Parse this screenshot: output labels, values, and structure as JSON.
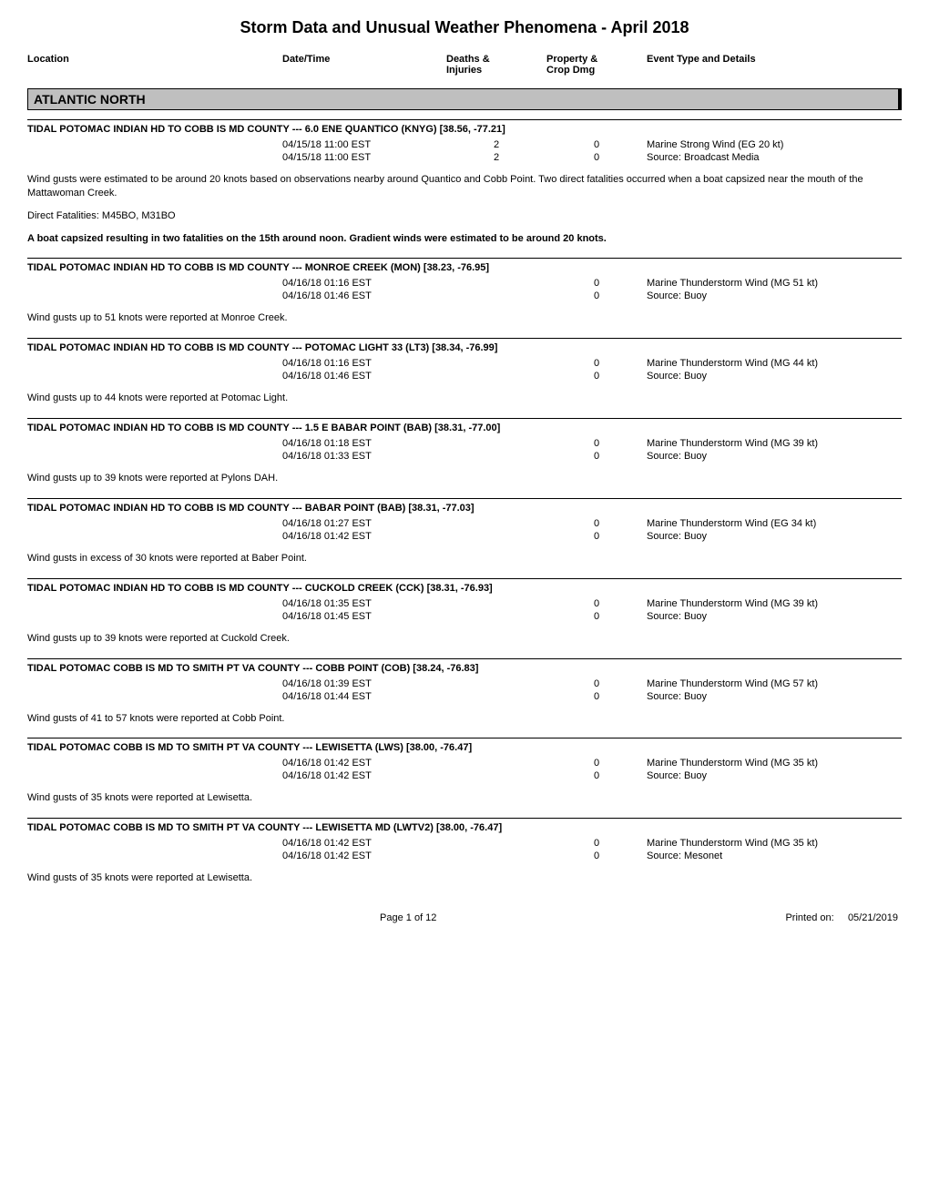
{
  "title": "Storm Data and Unusual Weather Phenomena - April 2018",
  "columns": {
    "c1": "Location",
    "c2": "Date/Time",
    "c3a": "Deaths &",
    "c3b": "Injuries",
    "c4a": "Property &",
    "c4b": "Crop Dmg",
    "c5": "Event Type and Details"
  },
  "region": "ATLANTIC NORTH",
  "events": [
    {
      "header": "TIDAL POTOMAC INDIAN HD TO COBB IS MD COUNTY --- 6.0 ENE QUANTICO (KNYG) [38.56, -77.21]",
      "rows": [
        {
          "date": "04/15/18 11:00 EST",
          "deaths": "2",
          "prop": "0",
          "type": "Marine Strong Wind (EG 20 kt)"
        },
        {
          "date": "04/15/18 11:00 EST",
          "deaths": "2",
          "prop": "0",
          "type": "Source: Broadcast Media"
        }
      ],
      "descs": [
        {
          "text": "Wind gusts were estimated to be around 20 knots based on observations nearby around Quantico and Cobb Point. Two direct fatalities occurred when a boat capsized near the mouth of the Mattawoman Creek.",
          "bold": false
        },
        {
          "text": "Direct Fatalities: M45BO, M31BO",
          "bold": false
        },
        {
          "text": "A boat capsized resulting in two fatalities on the 15th around noon. Gradient winds were estimated to be around 20 knots.",
          "bold": true
        }
      ]
    },
    {
      "header": "TIDAL POTOMAC INDIAN HD TO COBB IS MD COUNTY --- MONROE CREEK (MON) [38.23, -76.95]",
      "rows": [
        {
          "date": "04/16/18 01:16 EST",
          "deaths": "",
          "prop": "0",
          "type": "Marine Thunderstorm Wind (MG 51 kt)"
        },
        {
          "date": "04/16/18 01:46 EST",
          "deaths": "",
          "prop": "0",
          "type": "Source: Buoy"
        }
      ],
      "descs": [
        {
          "text": "Wind gusts up to 51 knots were reported at Monroe Creek.",
          "bold": false
        }
      ]
    },
    {
      "header": "TIDAL POTOMAC INDIAN HD TO COBB IS MD COUNTY --- POTOMAC LIGHT 33 (LT3) [38.34, -76.99]",
      "rows": [
        {
          "date": "04/16/18 01:16 EST",
          "deaths": "",
          "prop": "0",
          "type": "Marine Thunderstorm Wind (MG 44 kt)"
        },
        {
          "date": "04/16/18 01:46 EST",
          "deaths": "",
          "prop": "0",
          "type": "Source: Buoy"
        }
      ],
      "descs": [
        {
          "text": "Wind gusts up to 44 knots were reported at Potomac Light.",
          "bold": false
        }
      ]
    },
    {
      "header": "TIDAL POTOMAC INDIAN HD TO COBB IS MD COUNTY --- 1.5 E BABAR POINT (BAB) [38.31, -77.00]",
      "rows": [
        {
          "date": "04/16/18 01:18 EST",
          "deaths": "",
          "prop": "0",
          "type": "Marine Thunderstorm Wind (MG 39 kt)"
        },
        {
          "date": "04/16/18 01:33 EST",
          "deaths": "",
          "prop": "0",
          "type": "Source: Buoy"
        }
      ],
      "descs": [
        {
          "text": "Wind gusts up to 39 knots were reported at Pylons DAH.",
          "bold": false
        }
      ]
    },
    {
      "header": "TIDAL POTOMAC INDIAN HD TO COBB IS MD COUNTY --- BABAR POINT (BAB) [38.31, -77.03]",
      "rows": [
        {
          "date": "04/16/18 01:27 EST",
          "deaths": "",
          "prop": "0",
          "type": "Marine Thunderstorm Wind (EG 34 kt)"
        },
        {
          "date": "04/16/18 01:42 EST",
          "deaths": "",
          "prop": "0",
          "type": "Source: Buoy"
        }
      ],
      "descs": [
        {
          "text": "Wind gusts in excess of 30 knots were reported at Baber Point.",
          "bold": false
        }
      ]
    },
    {
      "header": "TIDAL POTOMAC INDIAN HD TO COBB IS MD COUNTY --- CUCKOLD CREEK (CCK) [38.31, -76.93]",
      "rows": [
        {
          "date": "04/16/18 01:35 EST",
          "deaths": "",
          "prop": "0",
          "type": "Marine Thunderstorm Wind (MG 39 kt)"
        },
        {
          "date": "04/16/18 01:45 EST",
          "deaths": "",
          "prop": "0",
          "type": "Source: Buoy"
        }
      ],
      "descs": [
        {
          "text": "Wind gusts up to 39 knots were reported at Cuckold Creek.",
          "bold": false
        }
      ]
    },
    {
      "header": "TIDAL POTOMAC COBB IS MD TO SMITH PT VA COUNTY --- COBB POINT (COB) [38.24, -76.83]",
      "rows": [
        {
          "date": "04/16/18 01:39 EST",
          "deaths": "",
          "prop": "0",
          "type": "Marine Thunderstorm Wind (MG 57 kt)"
        },
        {
          "date": "04/16/18 01:44 EST",
          "deaths": "",
          "prop": "0",
          "type": "Source: Buoy"
        }
      ],
      "descs": [
        {
          "text": "Wind gusts of 41 to 57 knots were reported at Cobb Point.",
          "bold": false
        }
      ]
    },
    {
      "header": "TIDAL POTOMAC COBB IS MD TO SMITH PT VA COUNTY --- LEWISETTA (LWS) [38.00, -76.47]",
      "rows": [
        {
          "date": "04/16/18 01:42 EST",
          "deaths": "",
          "prop": "0",
          "type": "Marine Thunderstorm Wind (MG 35 kt)"
        },
        {
          "date": "04/16/18 01:42 EST",
          "deaths": "",
          "prop": "0",
          "type": "Source: Buoy"
        }
      ],
      "descs": [
        {
          "text": "Wind gusts of 35 knots were reported at Lewisetta.",
          "bold": false
        }
      ]
    },
    {
      "header": "TIDAL POTOMAC COBB IS MD TO SMITH PT VA COUNTY --- LEWISETTA MD (LWTV2) [38.00, -76.47]",
      "rows": [
        {
          "date": "04/16/18 01:42 EST",
          "deaths": "",
          "prop": "0",
          "type": "Marine Thunderstorm Wind (MG 35 kt)"
        },
        {
          "date": "04/16/18 01:42 EST",
          "deaths": "",
          "prop": "0",
          "type": "Source: Mesonet"
        }
      ],
      "descs": [
        {
          "text": "Wind gusts of 35 knots were reported at Lewisetta.",
          "bold": false
        }
      ]
    }
  ],
  "footer": {
    "page": "Page 1 of 12",
    "printed_label": "Printed on:",
    "printed_date": "05/21/2019"
  }
}
